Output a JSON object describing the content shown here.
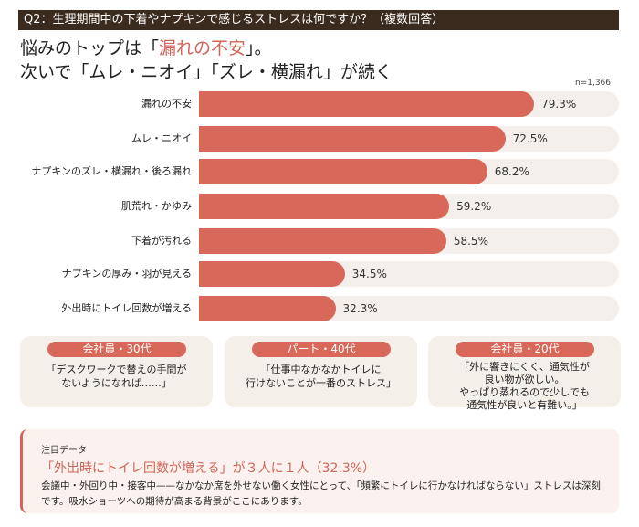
{
  "header": {
    "question": "Q2：生理期間中の下着やナプキンで感じるストレスは何ですか？（複数回答）"
  },
  "headline": {
    "line1_pre": "悩みのトップは「",
    "line1_accent": "漏れの不安",
    "line1_post": "」。",
    "line2": "次いで「ムレ・ニオイ」「ズレ・横漏れ」が続く"
  },
  "colors": {
    "bar": "#d8695a",
    "track": "#f4efeb",
    "header": "#3b2a1e",
    "accent": "#d0655a"
  },
  "chart_data": {
    "type": "bar",
    "orientation": "horizontal",
    "n_label": "n=1,366",
    "xlim": [
      0,
      100
    ],
    "categories": [
      "漏れの不安",
      "ムレ・ニオイ",
      "ナプキンのズレ・横漏れ・後ろ漏れ",
      "肌荒れ・かゆみ",
      "下着が汚れる",
      "ナプキンの厚み・羽が見える",
      "外出時にトイレ回数が増える"
    ],
    "values": [
      79.3,
      72.5,
      68.2,
      59.2,
      58.5,
      34.5,
      32.3
    ],
    "value_labels": [
      "79.3%",
      "72.5%",
      "68.2%",
      "59.2%",
      "58.5%",
      "34.5%",
      "32.3%"
    ]
  },
  "cards": [
    {
      "tag": "会社員・30代",
      "quote": "「デスクワークで替えの手間が\nないようになれば……」"
    },
    {
      "tag": "パート・40代",
      "quote": "「仕事中なかなかトイレに\n行けないことが一番のストレス」"
    },
    {
      "tag": "会社員・20代",
      "quote": "「外に響きにくく、通気性が\n良い物が欲しい。\nやっぱり蒸れるので少しでも\n通気性が良いと有難い。」"
    }
  ],
  "note": {
    "label": "注目データ",
    "headline": "「外出時にトイレ回数が増える」が３人に１人（32.3%）",
    "body": "会議中・外回り中・接客中——なかなか席を外せない働く女性にとって、「頻繁にトイレに行かなければならない」ストレスは深刻です。吸水ショーツへの期待が高まる背景がここにあります。"
  }
}
